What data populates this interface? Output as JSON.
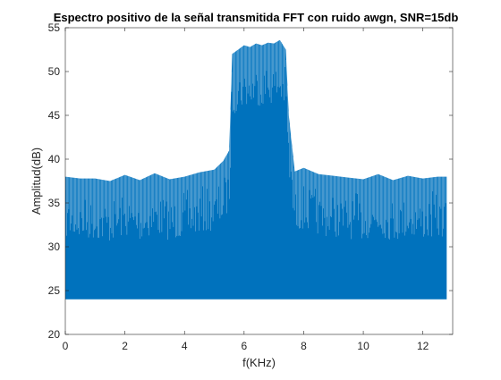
{
  "chart_data": {
    "type": "area",
    "title": "Espectro positivo de la señal transmitida FFT con ruido awgn, SNR=15db",
    "xlabel": "f(KHz)",
    "ylabel": "Amplitud(dB)",
    "xlim": [
      0,
      13
    ],
    "ylim": [
      20,
      55
    ],
    "xticks": [
      "0",
      "2",
      "4",
      "6",
      "8",
      "10",
      "12"
    ],
    "yticks": [
      "20",
      "25",
      "30",
      "35",
      "40",
      "45",
      "50",
      "55"
    ],
    "grid": false,
    "legend": "none",
    "series": [
      {
        "color": "#0072BD",
        "baseline": 24,
        "x_extent": [
          0,
          12.8
        ],
        "x": [
          0.0,
          0.5,
          1.0,
          1.5,
          2.0,
          2.5,
          3.0,
          3.5,
          4.0,
          4.5,
          5.0,
          5.3,
          5.5,
          5.6,
          5.8,
          6.0,
          6.2,
          6.4,
          6.6,
          6.8,
          7.0,
          7.2,
          7.4,
          7.5,
          7.7,
          8.0,
          8.5,
          9.0,
          9.5,
          10.0,
          10.5,
          11.0,
          11.5,
          12.0,
          12.5,
          12.8
        ],
        "values": [
          38.0,
          37.8,
          37.8,
          37.5,
          38.2,
          37.6,
          38.4,
          37.7,
          38.0,
          38.5,
          38.8,
          39.8,
          41.0,
          52.0,
          52.5,
          53.0,
          52.8,
          53.2,
          53.0,
          53.3,
          53.2,
          53.6,
          52.5,
          45.0,
          38.6,
          39.0,
          38.3,
          38.1,
          37.9,
          37.7,
          38.3,
          37.6,
          38.1,
          37.8,
          38.0,
          38.0
        ]
      }
    ]
  }
}
